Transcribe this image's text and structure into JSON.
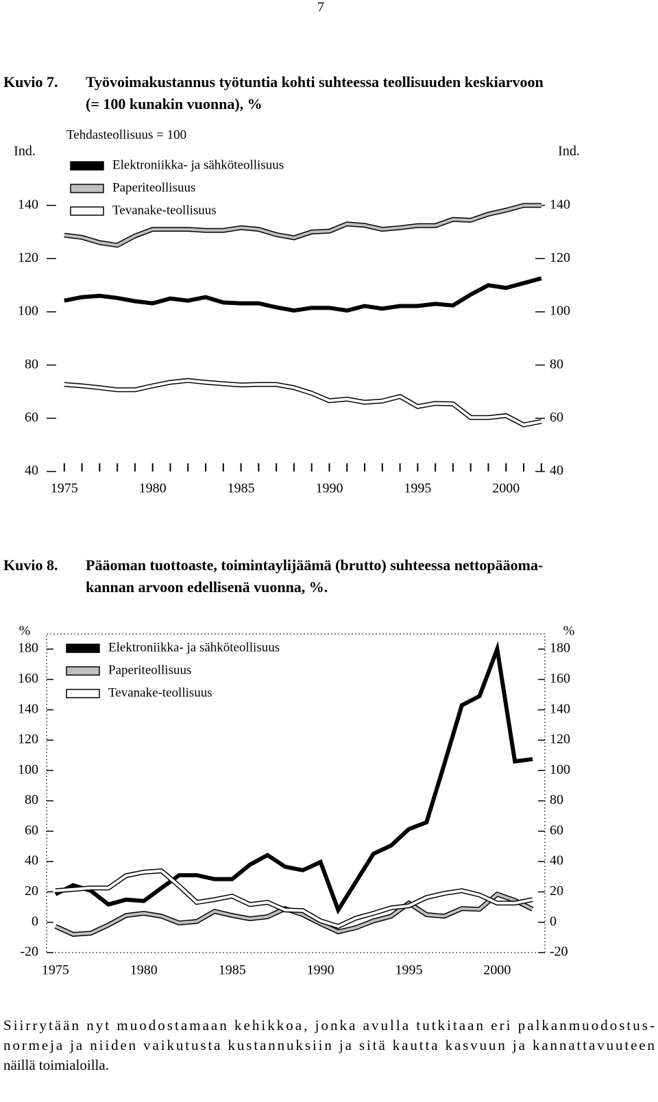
{
  "page_number": "7",
  "chart_data": [
    {
      "type": "line",
      "label": "Kuvio 7.",
      "title": [
        "Työvoimakustannus työtuntia kohti suhteessa teollisuuden keskiarvoon",
        "(= 100 kunakin vuonna), %"
      ],
      "subtitle": "Tehdasteollisuus = 100",
      "ylabel": "Ind.",
      "legend": "upper left",
      "grid": false,
      "x": [
        1975,
        1976,
        1977,
        1978,
        1979,
        1980,
        1981,
        1982,
        1983,
        1984,
        1985,
        1986,
        1987,
        1988,
        1989,
        1990,
        1991,
        1992,
        1993,
        1994,
        1995,
        1996,
        1997,
        1998,
        1999,
        2000,
        2001,
        2002
      ],
      "xlim": [
        1974,
        2002.2
      ],
      "xticks": [
        1975,
        1980,
        1985,
        1990,
        1995,
        2000
      ],
      "ylim": [
        40,
        160
      ],
      "yticks": [
        40,
        60,
        80,
        100,
        120,
        140
      ],
      "series": [
        {
          "name": "Elektroniikka- ja sähköteollisuus",
          "color": "#000000",
          "values": [
            104.2,
            105.5,
            106,
            105.2,
            104,
            103.2,
            105,
            104.2,
            105.5,
            103.5,
            103.2,
            103.2,
            101.7,
            100.5,
            101.5,
            101.5,
            100.5,
            102.2,
            101.2,
            102.2,
            102.2,
            103,
            102.4,
            106.5,
            110,
            109,
            110.8,
            112.6
          ]
        },
        {
          "name": "Paperiteollisuus",
          "color": "#bfbfbf",
          "values": [
            128.8,
            128,
            126,
            125,
            128.5,
            131,
            131,
            131,
            130.6,
            130.6,
            131.6,
            131,
            129,
            127.8,
            130,
            130.3,
            133,
            132.5,
            131,
            131.6,
            132.4,
            132.4,
            134.7,
            134.4,
            136.7,
            138.2,
            140,
            140
          ]
        },
        {
          "name": "Tevanake-teollisuus",
          "color": "#ffffff",
          "values": [
            72.7,
            72.2,
            71.5,
            70.7,
            70.7,
            72.2,
            73.5,
            74.2,
            73.5,
            73,
            72.5,
            72.7,
            72.7,
            71.5,
            69.4,
            66.6,
            67.2,
            66,
            66.5,
            68.2,
            64.4,
            65.6,
            65.4,
            60.3,
            60.3,
            61,
            57.5,
            58.8
          ]
        }
      ]
    },
    {
      "type": "line",
      "label": "Kuvio 8.",
      "title": [
        "Pääoman tuottoaste, toimintaylijäämä (brutto) suhteessa nettopääoma-",
        "kannan arvoon edellisenä vuonna, %."
      ],
      "ylabel": "%",
      "legend": "upper left",
      "grid": false,
      "x": [
        1975,
        1976,
        1977,
        1978,
        1979,
        1980,
        1981,
        1982,
        1983,
        1984,
        1985,
        1986,
        1987,
        1988,
        1989,
        1990,
        1991,
        1992,
        1993,
        1994,
        1995,
        1996,
        1997,
        1998,
        1999,
        2000,
        2001,
        2002
      ],
      "xlim": [
        1974.5,
        2002.7
      ],
      "xticks": [
        1975,
        1980,
        1985,
        1990,
        1995,
        2000
      ],
      "ylim": [
        -20,
        190
      ],
      "yticks": [
        -20,
        0,
        20,
        40,
        60,
        80,
        100,
        120,
        140,
        160,
        180
      ],
      "series": [
        {
          "name": "Elektroniikka- ja sähköteollisuus",
          "color": "#000000",
          "values": [
            18.5,
            24.4,
            20.8,
            11.7,
            14.9,
            14,
            22.6,
            31,
            31,
            28.4,
            28.4,
            37.9,
            44.2,
            36.6,
            34.3,
            39.7,
            8.1,
            26.6,
            45.1,
            50.6,
            61.4,
            65.9,
            104,
            143,
            149,
            180,
            106,
            107.5
          ]
        },
        {
          "name": "Paperiteollisuus",
          "color": "#bfbfbf",
          "values": [
            -2.7,
            -8,
            -7.2,
            -1.8,
            4.5,
            5.9,
            4,
            -0.5,
            0.5,
            7.2,
            4.5,
            2.3,
            3.6,
            9,
            5,
            -0.9,
            -6.3,
            -3.6,
            0.9,
            4,
            12.6,
            5,
            4,
            9,
            8.6,
            18.5,
            14.4,
            8.6
          ]
        },
        {
          "name": "Tevanake-teollisuus",
          "color": "#ffffff",
          "values": [
            20.8,
            21.7,
            22.6,
            22.6,
            30.7,
            33,
            33.9,
            23.9,
            13.1,
            14.9,
            17.2,
            11.7,
            13.1,
            8.1,
            7.7,
            0.9,
            -2.7,
            2.7,
            5.9,
            9.5,
            10.8,
            16.3,
            19,
            20.8,
            18,
            12.6,
            12.6,
            14.9
          ]
        }
      ]
    }
  ],
  "paragraph": {
    "lines": [
      "Siirrytään nyt muodostamaan kehikkoa, jonka avulla tutkitaan eri palkanmuodostus-",
      "normeja ja niiden vaikutusta kustannuksiin ja sitä kautta kasvuun ja kannattavuuteen",
      "näillä toimialoilla."
    ]
  }
}
